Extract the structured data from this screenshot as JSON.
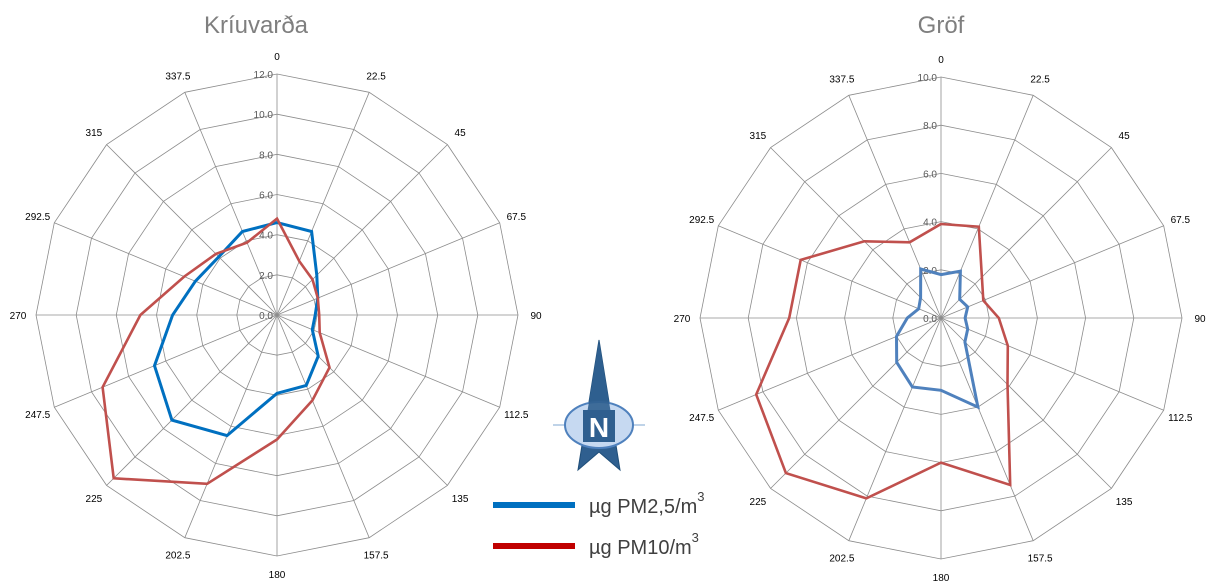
{
  "chart_data": [
    {
      "type": "radar",
      "title": "Kríuvarða",
      "directions": [
        "0",
        "22.5",
        "45",
        "67.5",
        "90",
        "112.5",
        "135",
        "157.5",
        "180",
        "202.5",
        "225",
        "247.5",
        "270",
        "292.5",
        "315",
        "337.5"
      ],
      "rticks": [
        "0.0",
        "2.0",
        "4.0",
        "6.0",
        "8.0",
        "10.0",
        "12.0"
      ],
      "rlim": [
        0,
        12
      ],
      "grid": true,
      "series": [
        {
          "name": "µg PM2,5/m3",
          "color": "#0070c0",
          "values": [
            4.6,
            4.5,
            2.8,
            2.2,
            1.9,
            1.9,
            2.9,
            3.8,
            3.9,
            6.5,
            7.4,
            6.6,
            5.2,
            4.4,
            4.1,
            4.5
          ]
        },
        {
          "name": "µg PM10/m3",
          "color": "#c0504d",
          "values": [
            4.8,
            2.9,
            2.5,
            2.2,
            2.1,
            2.3,
            3.7,
            4.6,
            6.2,
            9.1,
            11.5,
            9.4,
            6.8,
            5.0,
            4.3,
            3.9
          ]
        }
      ]
    },
    {
      "type": "radar",
      "title": "Gröf",
      "directions": [
        "0",
        "22.5",
        "45",
        "67.5",
        "90",
        "112.5",
        "135",
        "157.5",
        "180",
        "202.5",
        "225",
        "247.5",
        "270",
        "292.5",
        "315",
        "337.5"
      ],
      "rticks": [
        "0.0",
        "2.0",
        "4.0",
        "6.0",
        "8.0",
        "10.0"
      ],
      "rlim": [
        0,
        10
      ],
      "grid": true,
      "series": [
        {
          "name": "µg PM2,5/m3",
          "color": "#4f81bd",
          "values": [
            1.8,
            2.1,
            1.1,
            1.2,
            1.0,
            1.2,
            1.4,
            4.0,
            3.0,
            3.1,
            2.6,
            2.0,
            1.4,
            1.0,
            1.2,
            2.2
          ]
        },
        {
          "name": "µg PM10/m3",
          "color": "#c0504d",
          "values": [
            3.9,
            4.1,
            2.4,
            1.9,
            2.4,
            3.0,
            3.9,
            7.5,
            6.0,
            8.1,
            9.1,
            8.3,
            6.3,
            6.3,
            4.5,
            3.4
          ]
        }
      ]
    }
  ],
  "legend": {
    "items": [
      {
        "label": "µg PM2,5/m",
        "sup": "3",
        "color": "#0070c0"
      },
      {
        "label": "µg PM10/m",
        "sup": "3",
        "color": "#c00000"
      }
    ]
  },
  "north_arrow": {
    "letter": "N",
    "icon": "north-arrow-icon"
  }
}
